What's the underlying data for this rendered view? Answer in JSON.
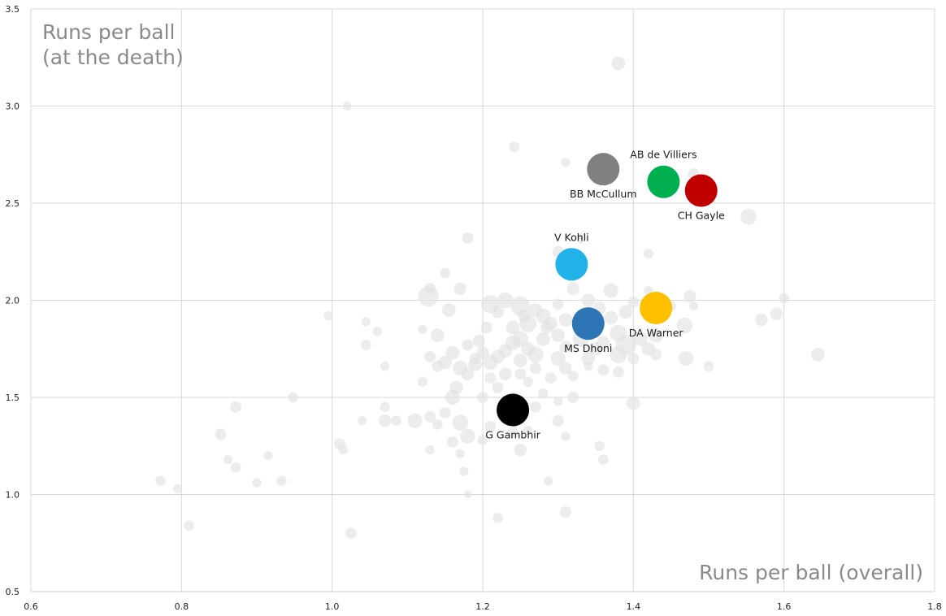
{
  "chart_data": {
    "type": "scatter",
    "title": "",
    "ylabel_lines": [
      "Runs per ball",
      "(at the death)"
    ],
    "xlabel": "Runs per ball (overall)",
    "xlim": [
      0.6,
      1.8
    ],
    "ylim": [
      0.5,
      3.5
    ],
    "x_ticks": [
      "0.6",
      "0.8",
      "1.0",
      "1.2",
      "1.4",
      "1.6",
      "1.8"
    ],
    "y_ticks": [
      "0.5",
      "1.0",
      "1.5",
      "2.0",
      "2.5",
      "3.0",
      "3.5"
    ],
    "grid": true,
    "background_color": "#e0e0e0",
    "background_points": [
      [
        1.38,
        3.22,
        1.2
      ],
      [
        1.02,
        3.0,
        0.8
      ],
      [
        1.242,
        2.79,
        0.9
      ],
      [
        1.31,
        2.71,
        0.8
      ],
      [
        1.48,
        2.65,
        1.0
      ],
      [
        1.553,
        2.43,
        1.4
      ],
      [
        1.18,
        2.32,
        1.0
      ],
      [
        1.3,
        2.25,
        1.0
      ],
      [
        1.42,
        2.24,
        0.9
      ],
      [
        1.33,
        2.32,
        0.9
      ],
      [
        1.13,
        2.06,
        1.0
      ],
      [
        1.15,
        2.14,
        0.9
      ],
      [
        1.128,
        2.02,
        1.8
      ],
      [
        1.155,
        1.95,
        1.2
      ],
      [
        1.17,
        2.06,
        1.1
      ],
      [
        1.21,
        1.98,
        1.6
      ],
      [
        1.23,
        2.0,
        1.4
      ],
      [
        1.25,
        1.97,
        1.7
      ],
      [
        1.26,
        1.88,
        1.5
      ],
      [
        1.28,
        1.92,
        1.3
      ],
      [
        1.3,
        1.98,
        1.0
      ],
      [
        1.32,
        2.06,
        1.1
      ],
      [
        1.34,
        2.0,
        1.2
      ],
      [
        1.37,
        2.05,
        1.3
      ],
      [
        1.39,
        1.94,
        1.2
      ],
      [
        1.4,
        1.99,
        1.0
      ],
      [
        1.42,
        2.05,
        0.8
      ],
      [
        1.45,
        1.97,
        0.9
      ],
      [
        1.475,
        2.02,
        1.1
      ],
      [
        1.48,
        1.97,
        0.8
      ],
      [
        1.468,
        1.87,
        1.4
      ],
      [
        1.43,
        1.82,
        1.3
      ],
      [
        1.41,
        1.8,
        1.2
      ],
      [
        1.39,
        1.77,
        1.8
      ],
      [
        1.38,
        1.83,
        1.5
      ],
      [
        1.36,
        1.78,
        1.2
      ],
      [
        1.35,
        1.84,
        1.0
      ],
      [
        1.33,
        1.8,
        1.4
      ],
      [
        1.31,
        1.76,
        1.1
      ],
      [
        1.3,
        1.82,
        1.2
      ],
      [
        1.29,
        1.88,
        1.2
      ],
      [
        1.28,
        1.8,
        1.2
      ],
      [
        1.27,
        1.72,
        1.4
      ],
      [
        1.26,
        1.75,
        1.2
      ],
      [
        1.25,
        1.8,
        1.4
      ],
      [
        1.24,
        1.78,
        1.3
      ],
      [
        1.23,
        1.74,
        1.2
      ],
      [
        1.22,
        1.71,
        1.2
      ],
      [
        1.21,
        1.68,
        1.3
      ],
      [
        1.2,
        1.73,
        1.1
      ],
      [
        1.19,
        1.67,
        1.2
      ],
      [
        1.18,
        1.62,
        1.1
      ],
      [
        1.17,
        1.65,
        1.3
      ],
      [
        1.16,
        1.73,
        1.2
      ],
      [
        1.15,
        1.68,
        1.2
      ],
      [
        1.14,
        1.66,
        1.0
      ],
      [
        1.13,
        1.71,
        1.0
      ],
      [
        1.12,
        1.85,
        0.8
      ],
      [
        1.14,
        1.82,
        1.2
      ],
      [
        1.165,
        1.55,
        1.2
      ],
      [
        1.16,
        1.5,
        1.3
      ],
      [
        1.15,
        1.42,
        1.0
      ],
      [
        1.14,
        1.36,
        0.9
      ],
      [
        1.13,
        1.4,
        1.0
      ],
      [
        1.11,
        1.38,
        1.3
      ],
      [
        1.12,
        1.58,
        0.9
      ],
      [
        1.17,
        1.37,
        1.4
      ],
      [
        1.18,
        1.3,
        1.3
      ],
      [
        1.16,
        1.27,
        1.0
      ],
      [
        1.13,
        1.23,
        0.8
      ],
      [
        1.17,
        1.21,
        0.8
      ],
      [
        1.175,
        1.12,
        0.8
      ],
      [
        1.18,
        1.0,
        0.7
      ],
      [
        1.22,
        0.88,
        0.9
      ],
      [
        1.21,
        1.35,
        1.0
      ],
      [
        1.2,
        1.28,
        0.9
      ],
      [
        1.23,
        1.4,
        1.0
      ],
      [
        1.24,
        1.32,
        1.0
      ],
      [
        1.25,
        1.23,
        1.1
      ],
      [
        1.26,
        1.33,
        0.8
      ],
      [
        1.27,
        1.45,
        1.0
      ],
      [
        1.28,
        1.52,
        0.9
      ],
      [
        1.3,
        1.48,
        0.8
      ],
      [
        1.32,
        1.5,
        1.0
      ],
      [
        1.29,
        1.6,
        1.0
      ],
      [
        1.31,
        1.65,
        1.1
      ],
      [
        1.27,
        1.65,
        1.0
      ],
      [
        1.26,
        1.58,
        0.9
      ],
      [
        1.3,
        1.7,
        1.3
      ],
      [
        1.34,
        1.7,
        1.2
      ],
      [
        1.36,
        1.64,
        1.0
      ],
      [
        1.38,
        1.72,
        1.5
      ],
      [
        1.4,
        1.7,
        1.0
      ],
      [
        1.42,
        1.75,
        1.2
      ],
      [
        1.43,
        1.72,
        1.0
      ],
      [
        1.47,
        1.7,
        1.3
      ],
      [
        1.5,
        1.66,
        0.9
      ],
      [
        1.4,
        1.47,
        1.2
      ],
      [
        1.38,
        1.63,
        1.0
      ],
      [
        1.31,
        1.3,
        0.8
      ],
      [
        1.3,
        1.38,
        1.0
      ],
      [
        1.287,
        1.07,
        0.8
      ],
      [
        1.31,
        0.91,
        1.0
      ],
      [
        1.355,
        1.25,
        0.9
      ],
      [
        1.36,
        1.18,
        0.9
      ],
      [
        1.57,
        1.9,
        1.1
      ],
      [
        1.59,
        1.93,
        1.1
      ],
      [
        1.6,
        2.01,
        0.9
      ],
      [
        1.645,
        1.72,
        1.2
      ],
      [
        1.07,
        1.66,
        0.8
      ],
      [
        1.06,
        1.84,
        0.8
      ],
      [
        1.045,
        1.89,
        0.8
      ],
      [
        1.045,
        1.77,
        0.9
      ],
      [
        0.995,
        1.92,
        0.8
      ],
      [
        1.07,
        1.45,
        0.9
      ],
      [
        1.07,
        1.38,
        1.1
      ],
      [
        1.085,
        1.38,
        0.9
      ],
      [
        1.04,
        1.38,
        0.8
      ],
      [
        1.01,
        1.26,
        1.0
      ],
      [
        1.015,
        1.23,
        0.8
      ],
      [
        1.025,
        0.8,
        1.0
      ],
      [
        0.948,
        1.5,
        0.9
      ],
      [
        0.933,
        1.07,
        0.9
      ],
      [
        0.915,
        1.2,
        0.8
      ],
      [
        0.9,
        1.06,
        0.8
      ],
      [
        0.872,
        1.45,
        1.0
      ],
      [
        0.872,
        1.14,
        0.9
      ],
      [
        0.862,
        1.18,
        0.8
      ],
      [
        0.852,
        1.31,
        1.0
      ],
      [
        0.81,
        0.84,
        0.9
      ],
      [
        0.795,
        1.03,
        0.8
      ],
      [
        0.772,
        1.07,
        0.9
      ],
      [
        1.195,
        1.79,
        1.1
      ],
      [
        1.205,
        1.86,
        1.0
      ],
      [
        1.22,
        1.94,
        1.1
      ],
      [
        1.24,
        1.86,
        1.2
      ],
      [
        1.255,
        1.92,
        1.1
      ],
      [
        1.27,
        1.95,
        1.2
      ],
      [
        1.285,
        1.86,
        1.1
      ],
      [
        1.31,
        1.9,
        1.2
      ],
      [
        1.335,
        1.93,
        1.1
      ],
      [
        1.345,
        1.88,
        1.2
      ],
      [
        1.355,
        1.96,
        1.1
      ],
      [
        1.37,
        1.91,
        1.2
      ],
      [
        1.25,
        1.69,
        1.2
      ],
      [
        1.23,
        1.62,
        1.1
      ],
      [
        1.21,
        1.6,
        1.0
      ],
      [
        1.19,
        1.7,
        1.0
      ],
      [
        1.18,
        1.77,
        1.0
      ],
      [
        1.2,
        1.5,
        1.0
      ],
      [
        1.22,
        1.55,
        1.0
      ],
      [
        1.24,
        1.5,
        0.9
      ],
      [
        1.25,
        1.62,
        1.0
      ],
      [
        1.32,
        1.61,
        0.9
      ],
      [
        1.34,
        1.66,
        0.8
      ],
      [
        1.35,
        1.75,
        1.2
      ]
    ],
    "highlighted": [
      {
        "name": "BB McCullum",
        "x": 1.36,
        "y": 2.675,
        "color": "#808080",
        "label_anchor": "below"
      },
      {
        "name": "AB de Villiers",
        "x": 1.44,
        "y": 2.61,
        "color": "#00b050",
        "label_anchor": "above"
      },
      {
        "name": "CH Gayle",
        "x": 1.49,
        "y": 2.565,
        "color": "#c00000",
        "label_anchor": "below"
      },
      {
        "name": "V Kohli",
        "x": 1.318,
        "y": 2.185,
        "color": "#21b2ea",
        "label_anchor": "above"
      },
      {
        "name": "DA Warner",
        "x": 1.43,
        "y": 1.96,
        "color": "#ffc000",
        "label_anchor": "below"
      },
      {
        "name": "MS Dhoni",
        "x": 1.34,
        "y": 1.88,
        "color": "#2e75b6",
        "label_anchor": "below"
      },
      {
        "name": "G Gambhir",
        "x": 1.24,
        "y": 1.435,
        "color": "#000000",
        "label_anchor": "below"
      }
    ]
  }
}
